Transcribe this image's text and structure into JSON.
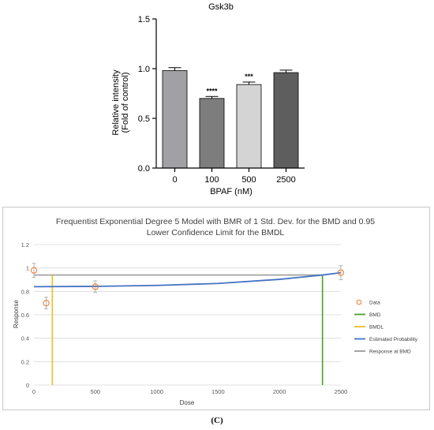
{
  "panel_label": "(C)",
  "chart_data": [
    {
      "type": "bar",
      "title": "Gsk3b",
      "xlabel": "BPAF (nM)",
      "ylabel_lines": [
        "Relative intensity",
        "(Fold of control)"
      ],
      "categories": [
        "0",
        "100",
        "500",
        "2500"
      ],
      "values": [
        0.98,
        0.7,
        0.84,
        0.96
      ],
      "errors": [
        0.03,
        0.02,
        0.025,
        0.025
      ],
      "significance": [
        "",
        "****",
        "***",
        ""
      ],
      "bar_colors": [
        "#a0a0a5",
        "#7d7d7d",
        "#d4d4d4",
        "#5e5e5e"
      ],
      "ylim": [
        0,
        1.5
      ],
      "yticks": [
        "0.0",
        "0.5",
        "1.0",
        "1.5"
      ],
      "grid": false,
      "legend": "none"
    },
    {
      "type": "line",
      "title_lines": [
        "Frequentist Exponential Degree 5 Model with BMR of 1 Std. Dev. for the BMD and 0.95",
        "Lower Confidence Limit for the BMDL"
      ],
      "xlabel": "Dose",
      "ylabel": "Response",
      "xlim": [
        0,
        2500
      ],
      "ylim": [
        0,
        1.2
      ],
      "xticks": [
        "0",
        "500",
        "1000",
        "1500",
        "2000",
        "2500"
      ],
      "yticks": [
        "0",
        "0.2",
        "0.4",
        "0.6",
        "0.8",
        "1",
        "1.2"
      ],
      "grid": true,
      "legend": "right",
      "data_points": {
        "x": [
          0,
          100,
          500,
          2500
        ],
        "y": [
          0.98,
          0.7,
          0.84,
          0.96
        ],
        "error": [
          0.06,
          0.05,
          0.05,
          0.06
        ]
      },
      "bmd": 2350,
      "bmdl": 150,
      "response_at_bmd": 0.94,
      "estimated_probability": {
        "x": [
          0,
          500,
          1000,
          1500,
          2000,
          2350,
          2500
        ],
        "y": [
          0.84,
          0.843,
          0.851,
          0.868,
          0.903,
          0.94,
          0.96
        ]
      },
      "series": [
        {
          "name": "Data",
          "color": "#ed7d31"
        },
        {
          "name": "BMD",
          "color": "#4ca02c"
        },
        {
          "name": "BMDL",
          "color": "#e5c021"
        },
        {
          "name": "Estimated Probability",
          "color": "#4472c4"
        },
        {
          "name": "Response at BMD",
          "color": "#9b9b9b"
        }
      ]
    }
  ]
}
